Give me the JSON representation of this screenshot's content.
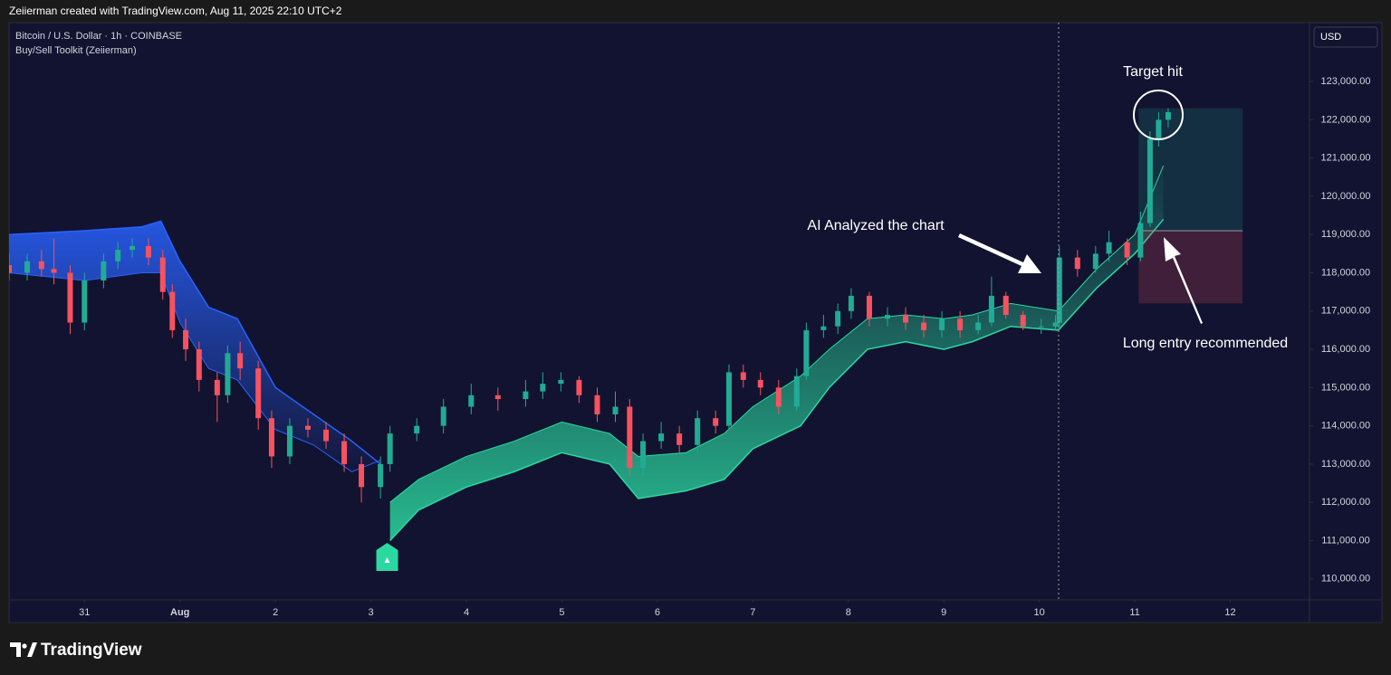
{
  "header": "Zeiierman created with TradingView.com, Aug 11, 2025 22:10 UTC+2",
  "brand": "TradingView",
  "chart_data": {
    "type": "candlestick",
    "symbol": "Bitcoin / U.S. Dollar · 1h · COINBASE",
    "indicator": "Buy/Sell Toolkit (Zeiierman)",
    "currency": "USD",
    "annotations": [
      "Target hit",
      "AI Analyzed the chart",
      "Long entry recommended"
    ],
    "up_color": "#22ab94",
    "down_color": "#f7525f",
    "x": [
      -0.79,
      -0.6,
      -0.45,
      -0.32,
      -0.15,
      0,
      0.2,
      0.35,
      0.5,
      0.67,
      0.82,
      0.92,
      1.06,
      1.2,
      1.39,
      1.5,
      1.63,
      1.82,
      1.96,
      2.15,
      2.34,
      2.53,
      2.72,
      2.9,
      3.1,
      3.2,
      3.48,
      3.76,
      4.05,
      4.33,
      4.62,
      4.8,
      4.99,
      5.18,
      5.37,
      5.56,
      5.71,
      5.85,
      6.04,
      6.23,
      6.42,
      6.61,
      6.75,
      6.9,
      7.08,
      7.27,
      7.46,
      7.56,
      7.74,
      7.89,
      8.03,
      8.22,
      8.41,
      8.6,
      8.79,
      8.98,
      9.17,
      9.36,
      9.5,
      9.65,
      9.83,
      10.02,
      10.17,
      10.21,
      10.4,
      10.59,
      10.73,
      10.92,
      11.06,
      11.16,
      11.25,
      11.35
    ],
    "open": [
      118200,
      118000,
      118300,
      118100,
      118000,
      116700,
      117800,
      118300,
      118600,
      118700,
      118400,
      117500,
      116500,
      116000,
      115200,
      114800,
      115900,
      115500,
      114200,
      113200,
      114000,
      113900,
      113600,
      113000,
      112400,
      113000,
      113800,
      114000,
      114500,
      114800,
      114700,
      114900,
      115100,
      115200,
      114800,
      114300,
      114500,
      112900,
      113600,
      113800,
      113500,
      114200,
      114000,
      115400,
      115200,
      115000,
      114500,
      115300,
      116500,
      116600,
      117000,
      117400,
      116800,
      116900,
      116700,
      116500,
      116800,
      116500,
      116700,
      117400,
      116900,
      116600,
      116600,
      116700,
      118400,
      118100,
      118500,
      118800,
      118400,
      119300,
      121500,
      122000
    ],
    "high": [
      118500,
      118500,
      118600,
      118900,
      118200,
      118000,
      118500,
      118800,
      118900,
      118900,
      118600,
      117700,
      116800,
      116200,
      115400,
      116100,
      116200,
      115700,
      114400,
      114200,
      114200,
      114100,
      113800,
      113200,
      113200,
      114000,
      114200,
      114700,
      115100,
      115000,
      115200,
      115400,
      115400,
      115300,
      115000,
      114900,
      114700,
      113800,
      114100,
      114000,
      114400,
      114400,
      115600,
      115600,
      115400,
      115200,
      115500,
      116700,
      116900,
      117200,
      117600,
      117500,
      117100,
      117100,
      116900,
      117000,
      117000,
      116900,
      117900,
      117500,
      117000,
      116800,
      116900,
      118700,
      118600,
      118700,
      119100,
      118900,
      119600,
      121700,
      122200,
      122300
    ],
    "low": [
      117800,
      117800,
      117900,
      117700,
      116400,
      116500,
      117600,
      118100,
      118400,
      118200,
      117300,
      116300,
      115700,
      114900,
      114100,
      114600,
      115200,
      113900,
      112900,
      113000,
      113700,
      113400,
      112800,
      112000,
      112100,
      112800,
      113600,
      113800,
      114300,
      114400,
      114500,
      114700,
      114900,
      114600,
      114100,
      114100,
      112700,
      112700,
      113400,
      113300,
      113300,
      113800,
      113900,
      115000,
      114800,
      114300,
      114400,
      115200,
      116300,
      116400,
      116800,
      116600,
      116600,
      116500,
      116300,
      116300,
      116300,
      116400,
      116600,
      116800,
      116500,
      116400,
      116500,
      116600,
      117900,
      118000,
      118300,
      118200,
      118300,
      119200,
      121300,
      121800
    ],
    "close": [
      118000,
      118300,
      118100,
      118000,
      116700,
      117800,
      118300,
      118600,
      118700,
      118400,
      117500,
      116500,
      116000,
      115200,
      114800,
      115900,
      115500,
      114200,
      113200,
      114000,
      113900,
      113600,
      113000,
      112400,
      113000,
      113800,
      114000,
      114500,
      114800,
      114700,
      114900,
      115100,
      115200,
      114800,
      114300,
      114500,
      112900,
      113600,
      113800,
      113500,
      114200,
      114000,
      115400,
      115200,
      115000,
      114500,
      115300,
      116500,
      116600,
      117000,
      117400,
      116800,
      116900,
      116700,
      116500,
      116800,
      116500,
      116700,
      117400,
      116900,
      116600,
      116600,
      116700,
      118400,
      118100,
      118500,
      118800,
      118400,
      119300,
      121500,
      122000,
      122200
    ],
    "band_upper": {
      "color": "#2962ff",
      "x": [
        -0.79,
        0,
        0.6,
        0.8,
        1.0,
        1.3,
        1.6,
        2.0,
        2.4,
        2.8,
        3.1
      ],
      "outer": [
        119000,
        119100,
        119200,
        119350,
        118300,
        117100,
        116800,
        115000,
        114300,
        113600,
        113000
      ],
      "inner": [
        118000,
        117800,
        118000,
        118000,
        116700,
        115500,
        115200,
        113900,
        113500,
        112800,
        113100
      ]
    },
    "band_lower": {
      "color": "#2bd9a0",
      "x": [
        3.2,
        3.5,
        4.0,
        4.5,
        5.0,
        5.5,
        5.8,
        6.3,
        6.7,
        7.0,
        7.5,
        7.8,
        8.2,
        8.6,
        9.0,
        9.3,
        9.7,
        10.2,
        10.6,
        11.0,
        11.3
      ],
      "outer": [
        111000,
        111800,
        112400,
        112800,
        113300,
        113000,
        112100,
        112300,
        112600,
        113400,
        114000,
        115000,
        116000,
        116200,
        116000,
        116200,
        116600,
        116500,
        117600,
        118500,
        119400
      ],
      "inner": [
        112000,
        112600,
        113200,
        113600,
        114100,
        113800,
        113200,
        113300,
        113800,
        114500,
        115300,
        116000,
        116800,
        116900,
        116800,
        116900,
        117200,
        117000,
        118100,
        119000,
        120800
      ]
    },
    "buy_signal_x": 3.17,
    "position": {
      "x": [
        11.04,
        12.13
      ],
      "entry": 119100,
      "target": 122300,
      "stop": 117200
    },
    "xlim": [
      -0.79,
      12.83
    ],
    "ylim": [
      109450,
      124540
    ],
    "xticks": [
      {
        "value": 0,
        "label": "31"
      },
      {
        "value": 1,
        "label": "Aug"
      },
      2,
      3,
      4,
      5,
      6,
      7,
      8,
      9,
      10,
      11,
      12
    ],
    "yticks": [
      {
        "value": 110000,
        "label": "110,000.00"
      },
      {
        "value": 111000,
        "label": "111,000.00"
      },
      {
        "value": 112000,
        "label": "112,000.00"
      },
      {
        "value": 113000,
        "label": "113,000.00"
      },
      {
        "value": 114000,
        "label": "114,000.00"
      },
      {
        "value": 115000,
        "label": "115,000.00"
      },
      {
        "value": 116000,
        "label": "116,000.00"
      },
      {
        "value": 117000,
        "label": "117,000.00"
      },
      {
        "value": 118000,
        "label": "118,000.00"
      },
      {
        "value": 119000,
        "label": "119,000.00"
      },
      {
        "value": 120000,
        "label": "120,000.00"
      },
      {
        "value": 121000,
        "label": "121,000.00"
      },
      {
        "value": 122000,
        "label": "122,000.00"
      },
      {
        "value": 123000,
        "label": "123,000.00"
      }
    ],
    "grid": false
  }
}
